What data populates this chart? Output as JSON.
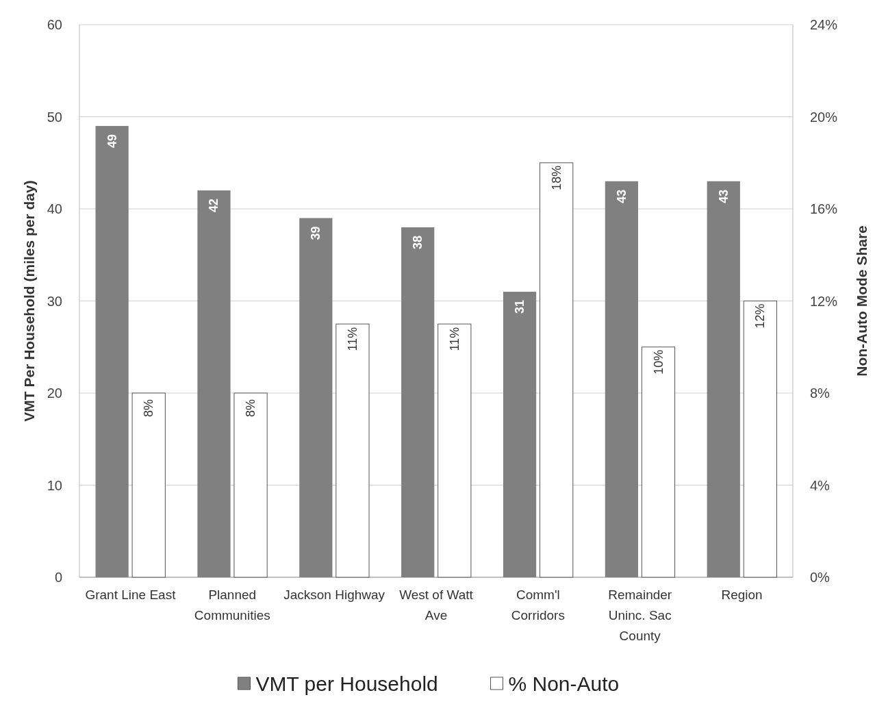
{
  "chart_data": {
    "type": "bar",
    "categories": [
      "Grant Line East",
      "Planned Communities",
      "Jackson Highway",
      "West of Watt Ave",
      "Comm'l Corridors",
      "Remainder Uninc. Sac County",
      "Region"
    ],
    "series": [
      {
        "name": "VMT per Household",
        "color": "#808080",
        "values": [
          49,
          42,
          39,
          38,
          31,
          43,
          43
        ],
        "value_labels": [
          "49",
          "42",
          "39",
          "38",
          "31",
          "43",
          "43"
        ]
      },
      {
        "name": "% Non-Auto",
        "color": "#ffffff",
        "axis": "y2",
        "values": [
          8,
          8,
          11,
          11,
          18,
          10,
          12
        ],
        "value_labels": [
          "8%",
          "8%",
          "11%",
          "11%",
          "18%",
          "10%",
          "12%"
        ]
      }
    ],
    "ylabel": "VMT Per Household (miles per day)",
    "y2label": "Non-Auto Mode Share",
    "ylim": [
      0,
      60
    ],
    "yticks": [
      0,
      10,
      20,
      30,
      40,
      50,
      60
    ],
    "y2lim": [
      0,
      24
    ],
    "y2ticks": [
      {
        "value": 0,
        "label": "0%"
      },
      {
        "value": 4,
        "label": "4%"
      },
      {
        "value": 8,
        "label": "8%"
      },
      {
        "value": 12,
        "label": "12%"
      },
      {
        "value": 16,
        "label": "16%"
      },
      {
        "value": 20,
        "label": "20%"
      },
      {
        "value": 24,
        "label": "24%"
      }
    ],
    "grid": "y",
    "legend": "bottom"
  }
}
